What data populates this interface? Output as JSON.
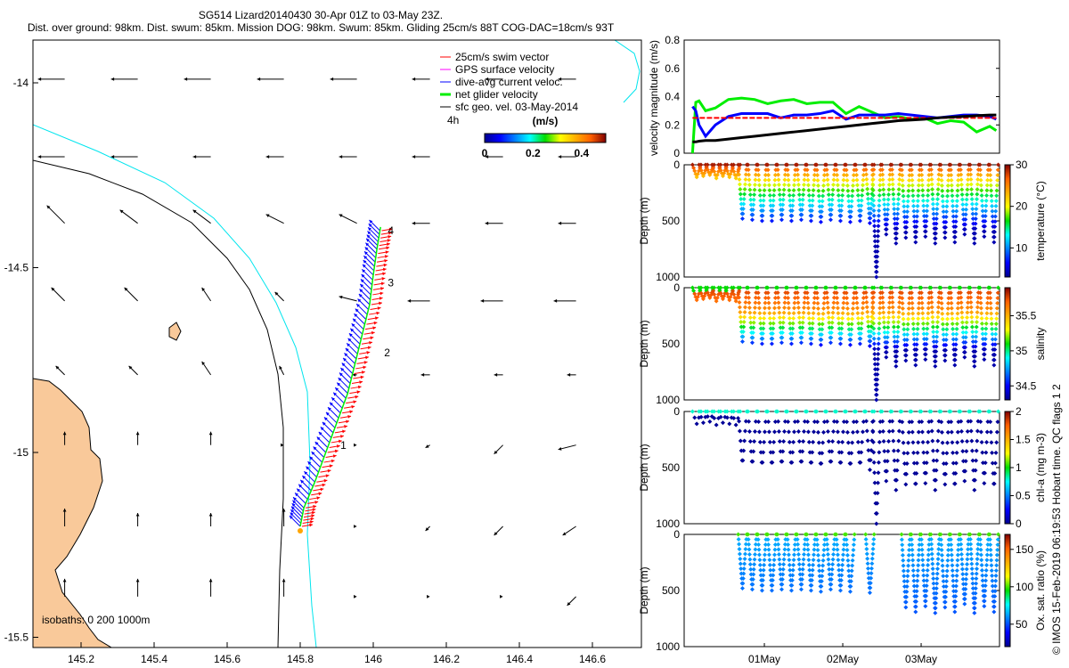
{
  "title": {
    "line1": "SG514 Lizard20140430 30-Apr 01Z to 03-May 23Z.",
    "line2": "Dist. over ground: 98km. Dist. swum: 85km. Mission DOG: 98km. Swum: 85km. Gliding 25cm/s 88T COG-DAC=18cm/s 93T"
  },
  "colors": {
    "land": "#f9c99a",
    "swim": "#ff0000",
    "gps": "#ff00ff",
    "dac": "#0000ff",
    "net": "#00ee00",
    "geo": "#000000",
    "isobath_shallow": "#00e5ee"
  },
  "chart_data": [
    {
      "type": "map",
      "xlim": [
        145.05,
        146.75
      ],
      "ylim": [
        -15.53,
        -13.88
      ],
      "xticks": [
        "145.2",
        "145.4",
        "145.6",
        "145.8",
        "146",
        "146.2",
        "146.4",
        "146.6"
      ],
      "xtick_values": [
        145.2,
        145.4,
        145.6,
        145.8,
        146,
        146.2,
        146.4,
        146.6
      ],
      "yticks": [
        "-14",
        "-14.5",
        "-15",
        "-15.5"
      ],
      "ytick_values": [
        -14,
        -14.5,
        -15,
        -15.5
      ],
      "legend": [
        "25cm/s swim vector",
        "GPS surface velocity",
        "dive-avg current veloc.",
        "net glider velocity",
        "sfc geo. vel. 03-May-2014"
      ],
      "legend_scale_label": "4h",
      "colorbar_title": "(m/s)",
      "colorbar_ticks": [
        "0",
        "0.2",
        "0.4"
      ],
      "colorbar_tick_values": [
        0,
        0.2,
        0.4
      ],
      "colorbar_range": [
        0,
        0.5
      ],
      "isobath_note": "isobaths: 0  200  1000m",
      "track_labels": [
        {
          "label": "1",
          "lon": 145.91,
          "lat": -14.99
        },
        {
          "label": "2",
          "lon": 146.03,
          "lat": -14.74
        },
        {
          "label": "3",
          "lon": 146.04,
          "lat": -14.55
        },
        {
          "label": "4",
          "lon": 146.04,
          "lat": -14.41
        }
      ],
      "track": [
        [
          145.8,
          -15.2
        ],
        [
          145.81,
          -15.15
        ],
        [
          145.84,
          -15.08
        ],
        [
          145.87,
          -15.0
        ],
        [
          145.9,
          -14.92
        ],
        [
          145.93,
          -14.84
        ],
        [
          145.95,
          -14.76
        ],
        [
          145.97,
          -14.68
        ],
        [
          145.99,
          -14.6
        ],
        [
          146.0,
          -14.52
        ],
        [
          146.01,
          -14.45
        ],
        [
          146.02,
          -14.39
        ]
      ],
      "geo_lons": [
        145.16,
        145.36,
        145.56,
        145.76,
        145.96,
        146.16,
        146.36,
        146.56
      ],
      "geo_lats": [
        -13.99,
        -14.2,
        -14.38,
        -14.59,
        -14.79,
        -14.98,
        -15.2,
        -15.39
      ],
      "geo_u": [
        [
          -0.3,
          -0.3,
          -0.3,
          -0.3,
          -0.3,
          -0.2,
          -0.2,
          -0.2
        ],
        [
          -0.3,
          -0.3,
          -0.2,
          -0.2,
          -0.2,
          -0.2,
          -0.2,
          -0.2
        ],
        [
          -0.2,
          -0.2,
          -0.2,
          -0.2,
          -0.2,
          -0.2,
          -0.2,
          -0.2
        ],
        [
          -0.15,
          -0.15,
          -0.1,
          -0.1,
          -0.2,
          -0.25,
          -0.25,
          -0.25
        ],
        [
          -0.1,
          -0.1,
          -0.1,
          -0.05,
          -0.05,
          -0.1,
          -0.1,
          -0.1
        ],
        [
          0,
          0,
          0,
          0,
          0,
          -0.05,
          -0.1,
          -0.2
        ],
        [
          0,
          0,
          0,
          0,
          0,
          -0.05,
          -0.1,
          -0.15
        ],
        [
          0,
          0,
          0,
          0,
          0,
          0,
          0,
          -0.1
        ]
      ],
      "geo_v": [
        [
          0,
          0,
          0,
          0,
          0,
          0,
          0,
          0
        ],
        [
          0,
          0,
          0,
          0,
          0,
          0,
          0,
          0
        ],
        [
          0.2,
          0.15,
          0.15,
          0.1,
          0.1,
          0,
          0,
          0
        ],
        [
          0.15,
          0.15,
          0.15,
          0.1,
          0.05,
          0,
          0,
          0
        ],
        [
          0.1,
          0.1,
          0.15,
          0.1,
          0,
          0,
          0,
          0
        ],
        [
          0.15,
          0.15,
          0.15,
          0,
          0,
          -0.03,
          -0.1,
          -0.05
        ],
        [
          0.2,
          0.15,
          0.15,
          0.2,
          0,
          -0.05,
          -0.1,
          -0.1
        ],
        [
          0.2,
          0.2,
          0.2,
          0.2,
          0,
          0,
          0,
          -0.1
        ]
      ]
    },
    {
      "type": "line",
      "ylabel": "velocity magnitude (m/s)",
      "ylim": [
        0,
        0.8
      ],
      "yticks": [
        "0",
        "0.2",
        "0.4",
        "0.6",
        "0.8"
      ],
      "ytick_values": [
        0,
        0.2,
        0.4,
        0.6,
        0.8
      ],
      "hours": [
        1,
        2,
        3,
        5,
        8,
        12,
        16,
        20,
        24,
        28,
        32,
        36,
        40,
        44,
        48,
        52,
        56,
        60,
        64,
        68,
        72,
        76,
        80,
        84,
        88,
        92,
        94
      ],
      "series": [
        {
          "name": "net glider velocity",
          "color": "#00ee00",
          "values": [
            0.0,
            0.36,
            0.37,
            0.3,
            0.32,
            0.38,
            0.39,
            0.38,
            0.35,
            0.37,
            0.38,
            0.35,
            0.36,
            0.36,
            0.28,
            0.33,
            0.29,
            0.25,
            0.26,
            0.24,
            0.25,
            0.21,
            0.23,
            0.22,
            0.15,
            0.19,
            0.16
          ]
        },
        {
          "name": "dive-avg current",
          "color": "#0000ff",
          "values": [
            0.33,
            0.3,
            0.2,
            0.12,
            0.2,
            0.26,
            0.28,
            0.28,
            0.28,
            0.25,
            0.27,
            0.27,
            0.28,
            0.3,
            0.24,
            0.27,
            0.27,
            0.27,
            0.28,
            0.27,
            0.26,
            0.25,
            0.26,
            0.27,
            0.27,
            0.26,
            0.24
          ]
        },
        {
          "name": "swim vector",
          "color": "#ff0000",
          "values": [
            0.25,
            0.25,
            0.25,
            0.25,
            0.25,
            0.25,
            0.25,
            0.25,
            0.25,
            0.25,
            0.25,
            0.25,
            0.25,
            0.25,
            0.25,
            0.25,
            0.25,
            0.25,
            0.25,
            0.25,
            0.25,
            0.25,
            0.25,
            0.25,
            0.25,
            0.25,
            0.25
          ]
        },
        {
          "name": "sfc geo. vel.",
          "color": "#000000",
          "values": [
            0.08,
            0.08,
            0.085,
            0.09,
            0.09,
            0.1,
            0.11,
            0.12,
            0.13,
            0.14,
            0.15,
            0.16,
            0.17,
            0.18,
            0.19,
            0.2,
            0.21,
            0.22,
            0.23,
            0.235,
            0.24,
            0.25,
            0.255,
            0.26,
            0.265,
            0.27,
            0.27
          ]
        }
      ]
    },
    {
      "type": "scatter",
      "xticks": [
        "01May",
        "02May",
        "03May"
      ],
      "xtick_hours": [
        23,
        47,
        71
      ],
      "xlim_hours": [
        0,
        94
      ],
      "dives_hours_maxdepth": [
        [
          1,
          110
        ],
        [
          3,
          100
        ],
        [
          5,
          90
        ],
        [
          7,
          120
        ],
        [
          9,
          100
        ],
        [
          11,
          110
        ],
        [
          13,
          120
        ],
        [
          15,
          480
        ],
        [
          18,
          490
        ],
        [
          21,
          500
        ],
        [
          24,
          500
        ],
        [
          27,
          490
        ],
        [
          30,
          500
        ],
        [
          33,
          490
        ],
        [
          36,
          500
        ],
        [
          39,
          510
        ],
        [
          42,
          490
        ],
        [
          45,
          500
        ],
        [
          48,
          510
        ],
        [
          51,
          500
        ],
        [
          54,
          520
        ],
        [
          56,
          1000
        ],
        [
          59,
          620
        ],
        [
          62,
          700
        ],
        [
          65,
          650
        ],
        [
          68,
          690
        ],
        [
          71,
          640
        ],
        [
          74,
          700
        ],
        [
          77,
          650
        ],
        [
          80,
          690
        ],
        [
          83,
          620
        ],
        [
          86,
          700
        ],
        [
          89,
          640
        ],
        [
          92,
          690
        ]
      ],
      "ox_present": [
        0,
        0,
        0,
        0,
        0,
        0,
        0,
        1,
        1,
        1,
        1,
        1,
        1,
        1,
        1,
        1,
        1,
        1,
        1,
        0,
        1,
        0,
        0,
        0,
        1,
        1,
        1,
        1,
        1,
        1,
        1,
        1,
        1,
        1
      ],
      "panels": [
        {
          "var": "temperature",
          "ylabel": "Depth (m)",
          "cbar_label": "temperature (°C)",
          "cbar_ticks": [
            "10",
            "20",
            "30"
          ],
          "cbar_tick_values": [
            10,
            20,
            30
          ],
          "crange": [
            3,
            30
          ]
        },
        {
          "var": "salinity",
          "ylabel": "Depth (m)",
          "cbar_label": "salinity",
          "cbar_ticks": [
            "34.5",
            "35",
            "35.5"
          ],
          "cbar_tick_values": [
            34.5,
            35,
            35.5
          ],
          "crange": [
            34.3,
            35.9
          ]
        },
        {
          "var": "chl",
          "ylabel": "Depth (m)",
          "cbar_label": "chl-a (mg m-3)",
          "cbar_ticks": [
            "0",
            "0.5",
            "1",
            "1.5",
            "2"
          ],
          "cbar_tick_values": [
            0,
            0.5,
            1,
            1.5,
            2
          ],
          "crange": [
            0,
            2
          ]
        },
        {
          "var": "ox",
          "ylabel": "Depth (m)",
          "cbar_label": "Ox. sat. ratio (%)",
          "cbar_ticks": [
            "50",
            "100",
            "150"
          ],
          "cbar_tick_values": [
            50,
            100,
            150
          ],
          "crange": [
            20,
            170
          ]
        }
      ],
      "depth_ticks": [
        "0",
        "500",
        "1000"
      ],
      "depth_tick_values": [
        0,
        500,
        1000
      ]
    }
  ],
  "credit": "© IMOS 15-Feb-2019 06:19:53 Hobart time. QC flags 1  2"
}
